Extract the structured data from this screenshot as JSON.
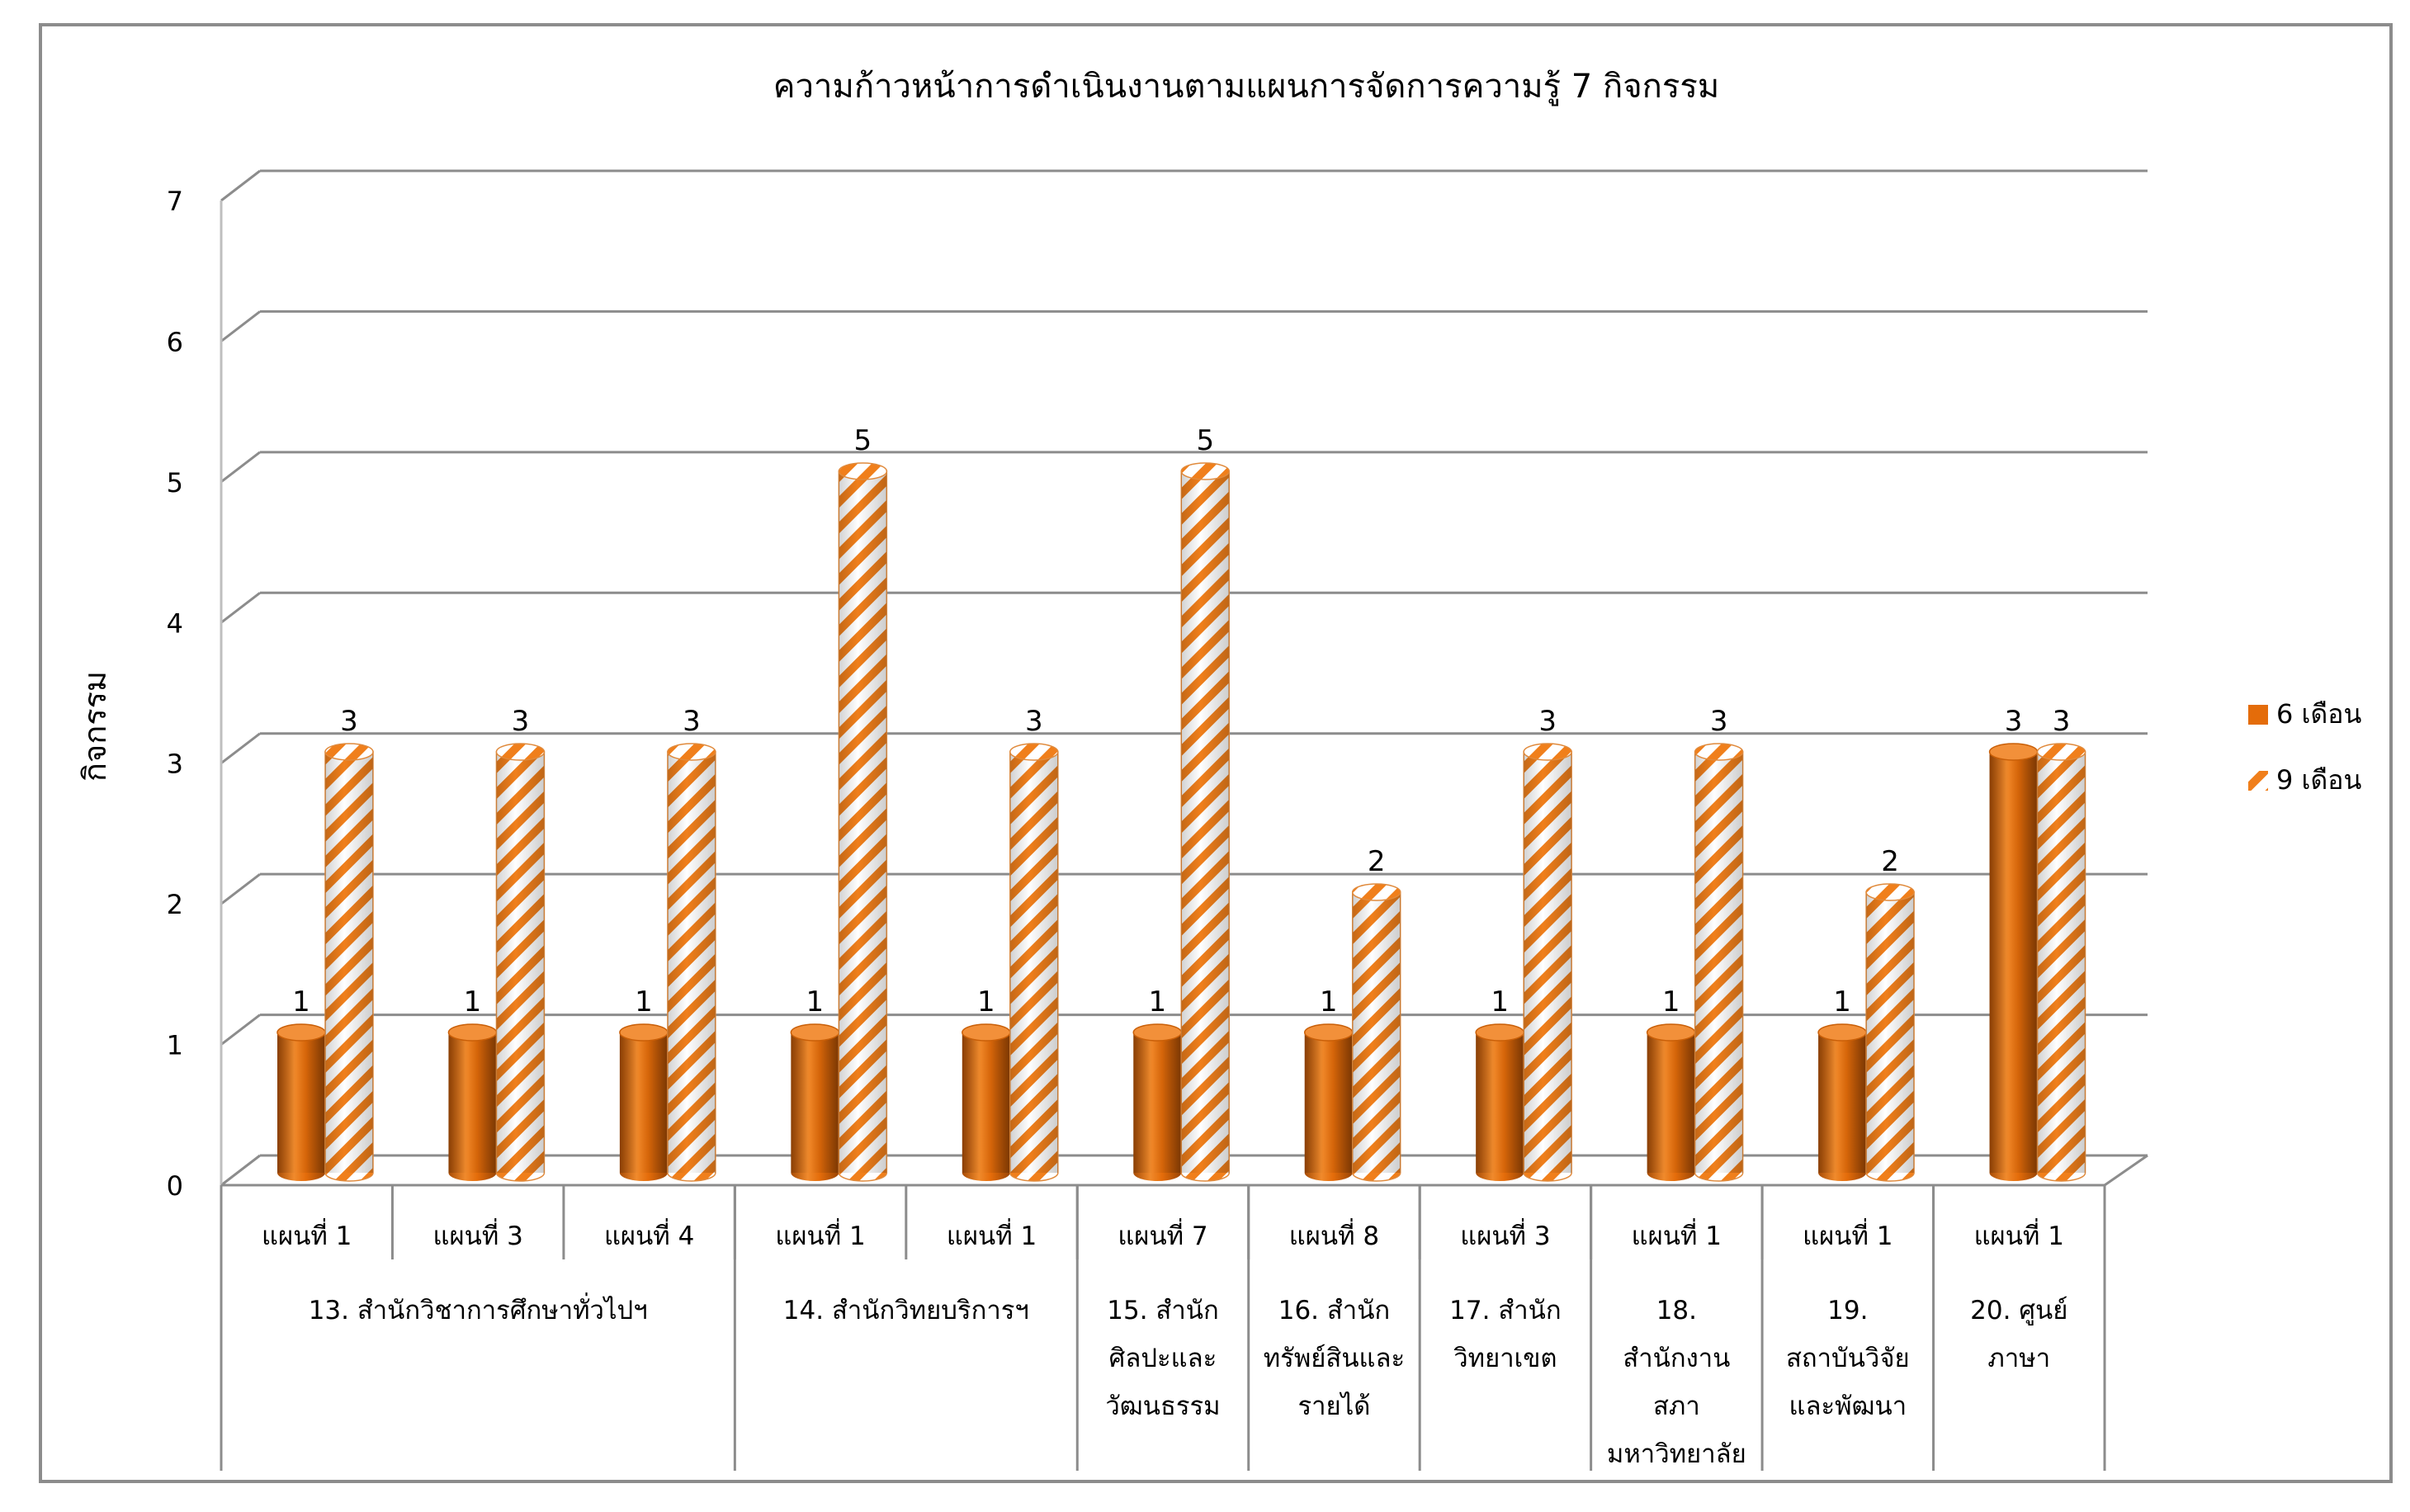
{
  "chart_data": {
    "type": "bar",
    "title": "ความก้าวหน้าการดำเนินงานตามแผนการจัดการความรู้ 7 กิจกรรม",
    "ylabel": "กิจกรรม",
    "xlabel": "",
    "ylim": [
      0,
      7
    ],
    "yticks": [
      "0",
      "1",
      "2",
      "3",
      "4",
      "5",
      "6",
      "7"
    ],
    "grid": true,
    "legend_position": "right",
    "style": "3d-cylinder",
    "categories": [
      "แผนที่ 1",
      "แผนที่ 3",
      "แผนที่ 4",
      "แผนที่ 1",
      "แผนที่ 1",
      "แผนที่ 7",
      "แผนที่ 8",
      "แผนที่ 3",
      "แผนที่ 1",
      "แผนที่ 1",
      "แผนที่ 1"
    ],
    "groups": [
      {
        "label": [
          "13. สำนักวิชาการศึกษาทั่วไปฯ"
        ],
        "span": 3
      },
      {
        "label": [
          "14. สำนักวิทยบริการฯ"
        ],
        "span": 2
      },
      {
        "label": [
          "15. สำนัก",
          "ศิลปะและ",
          "วัฒนธรรม"
        ],
        "span": 1
      },
      {
        "label": [
          "16. สำนัก",
          "ทรัพย์สินและ",
          "รายได้"
        ],
        "span": 1
      },
      {
        "label": [
          "17. สำนัก",
          "วิทยาเขต"
        ],
        "span": 1
      },
      {
        "label": [
          "18.",
          "สำนักงาน",
          "สภา",
          "มหาวิทยาลัย"
        ],
        "span": 1
      },
      {
        "label": [
          "19.",
          "สถาบันวิจัย",
          "และพัฒนา"
        ],
        "span": 1
      },
      {
        "label": [
          "20. ศูนย์",
          "ภาษา"
        ],
        "span": 1
      }
    ],
    "series": [
      {
        "name": "6 เดือน",
        "values": [
          1,
          1,
          1,
          1,
          1,
          1,
          1,
          1,
          1,
          1,
          3
        ],
        "color": "#E46C0A",
        "fill": "solid"
      },
      {
        "name": "9 เดือน",
        "values": [
          3,
          3,
          3,
          5,
          3,
          5,
          2,
          3,
          3,
          2,
          3
        ],
        "color": "#F07F1B",
        "fill": "diagonal-stripes"
      }
    ],
    "data_labels": true
  }
}
